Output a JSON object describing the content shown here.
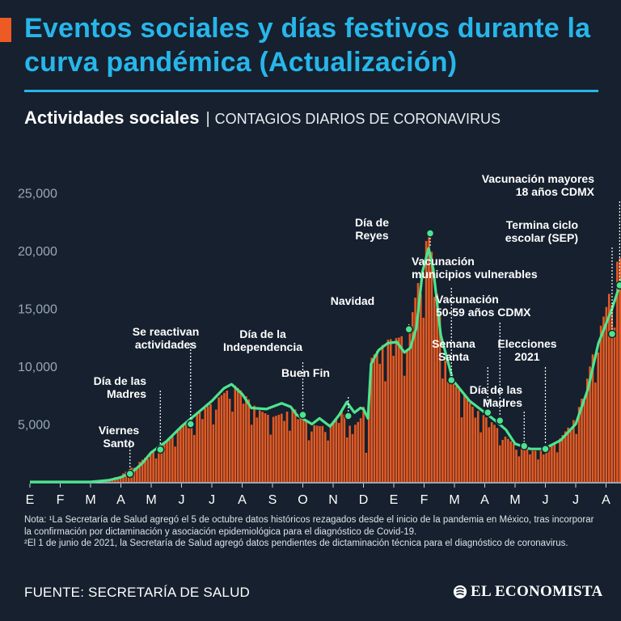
{
  "title": "Eventos sociales y días festivos durante la curva pandémica (Actualización)",
  "subtitle": {
    "bold": "Actividades sociales",
    "separator": "|",
    "light": "CONTAGIOS DIARIOS DE CORONAVIRUS"
  },
  "colors": {
    "background": "#16202e",
    "title": "#27b6ea",
    "bars": "#e55a22",
    "trend": "#4ce58f",
    "accent": "#ee5a24"
  },
  "chart_data": {
    "type": "bar",
    "title": "Contagios diarios de coronavirus",
    "ylim": [
      0,
      25000
    ],
    "yticks": [
      5000,
      10000,
      15000,
      20000,
      25000
    ],
    "ytick_labels": [
      "5,000",
      "10,000",
      "15,000",
      "20,000",
      "25,000"
    ],
    "months": [
      "E",
      "F",
      "M",
      "A",
      "M",
      "J",
      "J",
      "A",
      "S",
      "O",
      "N",
      "D",
      "E",
      "F",
      "M",
      "A",
      "M",
      "J",
      "J",
      "A"
    ],
    "x_unit": "months since 1 Jan 2020",
    "series": [
      {
        "name": "Contagios diarios (barras)",
        "kind": "bar",
        "points": [
          [
            2.0,
            0
          ],
          [
            2.6,
            200
          ],
          [
            3.0,
            600
          ],
          [
            3.5,
            1500
          ],
          [
            4.0,
            2500
          ],
          [
            4.5,
            3500
          ],
          [
            5.0,
            4800
          ],
          [
            5.5,
            5800
          ],
          [
            6.0,
            6800
          ],
          [
            6.5,
            7900
          ],
          [
            6.7,
            8500
          ],
          [
            7.0,
            7800
          ],
          [
            7.5,
            6300
          ],
          [
            8.0,
            5600
          ],
          [
            8.5,
            6100
          ],
          [
            8.8,
            6300
          ],
          [
            9.2,
            5000
          ],
          [
            9.6,
            4800
          ],
          [
            10.0,
            5100
          ],
          [
            10.3,
            6200
          ],
          [
            10.6,
            4600
          ],
          [
            10.9,
            5400
          ],
          [
            11.0,
            6500
          ],
          [
            11.15,
            1500
          ],
          [
            11.2,
            10500
          ],
          [
            11.5,
            11500
          ],
          [
            11.8,
            12300
          ],
          [
            12.2,
            12500
          ],
          [
            12.5,
            13000
          ],
          [
            12.75,
            16500
          ],
          [
            13.0,
            20000
          ],
          [
            13.15,
            21800
          ],
          [
            13.35,
            18000
          ],
          [
            13.7,
            10500
          ],
          [
            14.0,
            8400
          ],
          [
            14.3,
            7600
          ],
          [
            14.6,
            6500
          ],
          [
            15.0,
            5700
          ],
          [
            15.3,
            5000
          ],
          [
            15.6,
            4100
          ],
          [
            16.0,
            3200
          ],
          [
            16.5,
            2700
          ],
          [
            17.0,
            2700
          ],
          [
            17.5,
            3800
          ],
          [
            18.0,
            5600
          ],
          [
            18.3,
            8000
          ],
          [
            18.6,
            11500
          ],
          [
            19.0,
            15000
          ],
          [
            19.3,
            18800
          ],
          [
            19.5,
            19500
          ],
          [
            19.7,
            18300
          ]
        ]
      },
      {
        "name": "Tendencia (promedio móvil)",
        "kind": "line",
        "points": [
          [
            0.0,
            0
          ],
          [
            2.0,
            0
          ],
          [
            2.6,
            150
          ],
          [
            3.0,
            400
          ],
          [
            3.4,
            900
          ],
          [
            3.7,
            1600
          ],
          [
            4.0,
            2550
          ],
          [
            4.5,
            3500
          ],
          [
            5.0,
            4800
          ],
          [
            5.5,
            5900
          ],
          [
            6.0,
            7000
          ],
          [
            6.4,
            8100
          ],
          [
            6.65,
            8450
          ],
          [
            7.0,
            7600
          ],
          [
            7.3,
            6400
          ],
          [
            7.8,
            6300
          ],
          [
            8.3,
            6800
          ],
          [
            8.6,
            6500
          ],
          [
            8.8,
            5800
          ],
          [
            9.3,
            5000
          ],
          [
            9.55,
            5500
          ],
          [
            9.9,
            4800
          ],
          [
            10.2,
            5800
          ],
          [
            10.45,
            6900
          ],
          [
            10.7,
            6000
          ],
          [
            10.9,
            6400
          ],
          [
            11.0,
            6300
          ],
          [
            11.15,
            5500
          ],
          [
            11.25,
            10200
          ],
          [
            11.5,
            11400
          ],
          [
            11.8,
            12000
          ],
          [
            12.1,
            12100
          ],
          [
            12.35,
            11200
          ],
          [
            12.55,
            11600
          ],
          [
            12.75,
            13400
          ],
          [
            12.95,
            18200
          ],
          [
            13.15,
            20200
          ],
          [
            13.3,
            18400
          ],
          [
            13.55,
            12700
          ],
          [
            13.95,
            8800
          ],
          [
            14.5,
            7000
          ],
          [
            15.0,
            6000
          ],
          [
            15.35,
            5300
          ],
          [
            15.7,
            4500
          ],
          [
            16.0,
            3300
          ],
          [
            16.5,
            2850
          ],
          [
            16.95,
            2850
          ],
          [
            17.5,
            3600
          ],
          [
            18.0,
            5000
          ],
          [
            18.4,
            8000
          ],
          [
            18.75,
            12000
          ],
          [
            19.2,
            15000
          ],
          [
            19.45,
            17000
          ],
          [
            19.7,
            18900
          ]
        ]
      }
    ],
    "annotations": [
      {
        "label": "Viernes Santo",
        "x": 3.3,
        "y": 700
      },
      {
        "label": "Día de las Madres",
        "x": 4.3,
        "y": 2800
      },
      {
        "label": "Se reactivan actividades",
        "x": 5.3,
        "y": 5000
      },
      {
        "label": "Día de la Independencia",
        "x": 9.0,
        "y": 5800
      },
      {
        "label": "Buen Fin",
        "x": 10.5,
        "y": 5700
      },
      {
        "label": "Navidad",
        "x": 12.5,
        "y": 13200
      },
      {
        "label": "Día de Reyes",
        "x": 13.2,
        "y": 21500
      },
      {
        "label": "Vacunación municipios vulnerables",
        "x": 13.9,
        "y": 8800
      },
      {
        "label": "Semana Santa",
        "x": 15.1,
        "y": 6000
      },
      {
        "label": "Vacunación 50-59 años CDMX",
        "x": 15.5,
        "y": 5300
      },
      {
        "label": "Día de las Madres",
        "x": 16.3,
        "y": 3100
      },
      {
        "label": "Elecciones 2021",
        "x": 17.0,
        "y": 2850
      },
      {
        "label": "Termina ciclo escolar (SEP)",
        "x": 19.2,
        "y": 12800
      },
      {
        "label": "Vacunación mayores 18 años CDMX",
        "x": 19.45,
        "y": 17000
      }
    ]
  },
  "note": {
    "line1": "Nota: ¹La Secretaría de Salud agregó el 5 de octubre datos históricos rezagados desde el inicio de la pandemia en México, tras incorporar la confirmación por dictaminación y asociación epidemiológica para el diagnóstico de Covid-19.",
    "line2": "²El 1 de junio de 2021, la Secretaría de Salud agregó datos pendientes de dictaminación técnica para el diagnóstico de coronavirus."
  },
  "source": "FUENTE: SECRETARÍA DE SALUD",
  "brand": {
    "name": "EL ECONOMISTA",
    "icon": "el-economista-logo-icon"
  }
}
